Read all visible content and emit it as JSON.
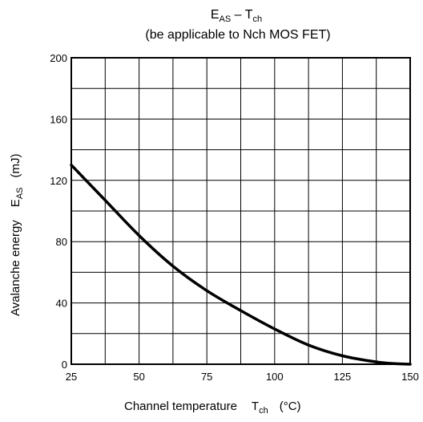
{
  "chart_data": {
    "type": "line",
    "title": {
      "main": "E",
      "main_sub": "AS",
      "dash": " – T",
      "dash_sub": "ch"
    },
    "subtitle": "(be applicable to Nch MOS FET)",
    "xlabel": {
      "text": "Channel temperature",
      "symbol": "T",
      "symbol_sub": "ch",
      "unit": "(°C)"
    },
    "ylabel": {
      "text": "Avalanche energy",
      "symbol": "E",
      "symbol_sub": "AS",
      "unit": "(mJ)"
    },
    "xlim": [
      25,
      150
    ],
    "ylim": [
      0,
      200
    ],
    "x_ticks": [
      25,
      50,
      75,
      100,
      125,
      150
    ],
    "y_ticks": [
      0,
      40,
      80,
      120,
      160,
      200
    ],
    "x_grid_step": 12.5,
    "y_grid_step": 20,
    "grid": true,
    "series": [
      {
        "x": [
          25,
          37.5,
          50,
          62.5,
          75,
          87.5,
          100,
          112.5,
          125,
          137.5,
          145,
          150
        ],
        "y": [
          130,
          107,
          84,
          64,
          48,
          35,
          23,
          12.5,
          5.5,
          1.5,
          0.3,
          0
        ],
        "color": "#000000"
      }
    ]
  }
}
